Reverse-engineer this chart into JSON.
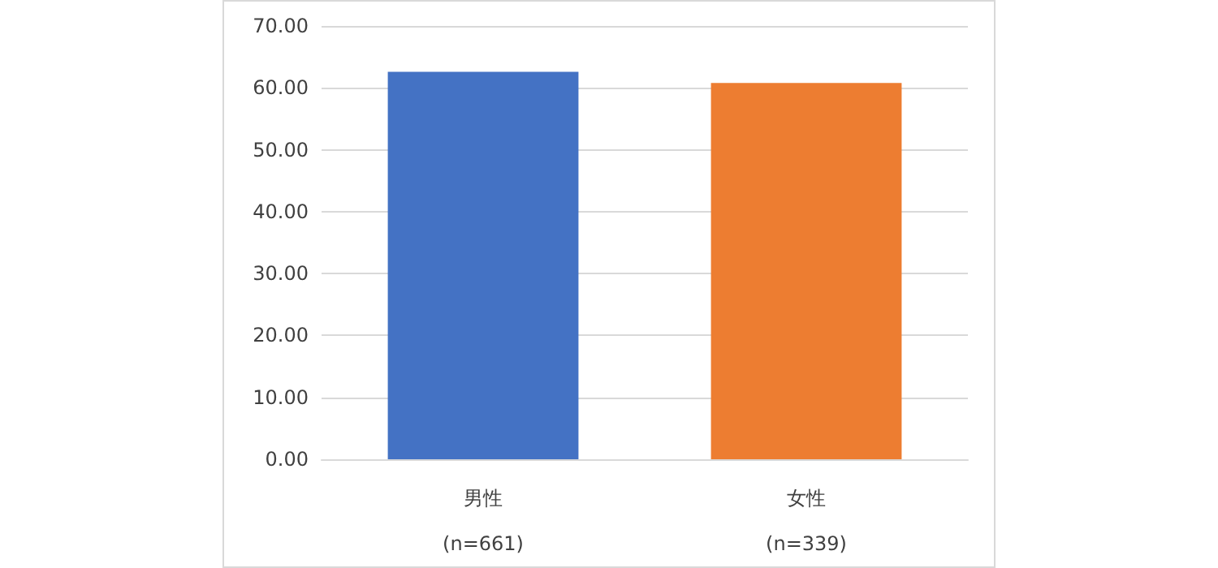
{
  "chart_data": {
    "type": "bar",
    "categories": [
      "男性\n(n=661)",
      "女性\n(n=339)"
    ],
    "values": [
      62.6,
      60.8
    ],
    "colors": [
      "#4472c4",
      "#ed7d31"
    ],
    "ylim": [
      0,
      70
    ],
    "yticks": [
      {
        "value": 0,
        "label": "0.00"
      },
      {
        "value": 10,
        "label": "10.00"
      },
      {
        "value": 20,
        "label": "20.00"
      },
      {
        "value": 30,
        "label": "30.00"
      },
      {
        "value": 40,
        "label": "40.00"
      },
      {
        "value": 50,
        "label": "50.00"
      },
      {
        "value": 60,
        "label": "60.00"
      },
      {
        "value": 70,
        "label": "70.00"
      }
    ],
    "grid": "y"
  }
}
